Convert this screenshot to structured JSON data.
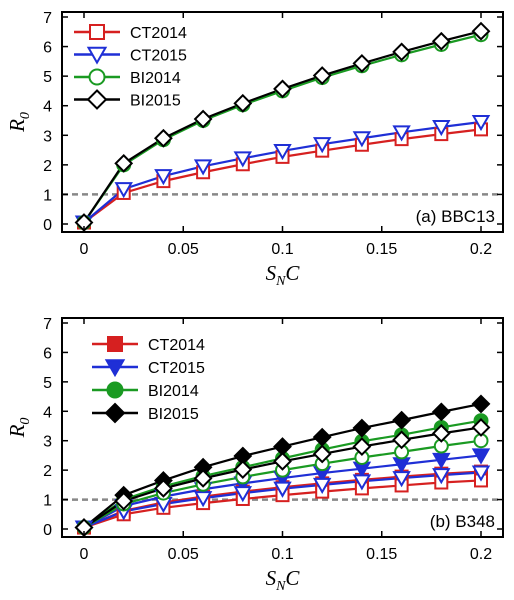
{
  "colors": {
    "CT2014": "#d62020",
    "CT2015": "#1f2fd6",
    "BI2014": "#1a9a22",
    "BI2015": "#000000",
    "threshold": "#888888"
  },
  "chart_data": [
    {
      "type": "line",
      "panel_label": "(a) BBC13",
      "xlabel": "S_N C",
      "ylabel": "R_0",
      "xlim": [
        0,
        0.2
      ],
      "ylim": [
        0,
        7
      ],
      "x_ticks": [
        "0",
        "0.05",
        "0.1",
        "0.15",
        "0.2"
      ],
      "y_ticks": [
        "0",
        "1",
        "2",
        "3",
        "4",
        "5",
        "6",
        "7"
      ],
      "x_tick_values": [
        0,
        0.05,
        0.1,
        0.15,
        0.2
      ],
      "y_tick_values": [
        0,
        1,
        2,
        3,
        4,
        5,
        6,
        7
      ],
      "threshold": 1,
      "legend_position": "top-left",
      "x": [
        0,
        0.02,
        0.04,
        0.06,
        0.08,
        0.1,
        0.12,
        0.14,
        0.16,
        0.18,
        0.2
      ],
      "series": [
        {
          "name": "CT2014",
          "marker": "square",
          "filled": false,
          "color_key": "CT2014",
          "values": [
            0.05,
            1.05,
            1.45,
            1.75,
            2.02,
            2.27,
            2.48,
            2.68,
            2.87,
            3.04,
            3.2
          ]
        },
        {
          "name": "CT2015",
          "marker": "triangle-down",
          "filled": false,
          "color_key": "CT2015",
          "values": [
            0.05,
            1.18,
            1.62,
            1.95,
            2.22,
            2.47,
            2.7,
            2.9,
            3.1,
            3.28,
            3.45
          ]
        },
        {
          "name": "BI2014",
          "marker": "circle",
          "filled": false,
          "color_key": "BI2014",
          "values": [
            0.05,
            2.0,
            2.85,
            3.5,
            4.03,
            4.5,
            4.95,
            5.35,
            5.72,
            6.07,
            6.4
          ]
        },
        {
          "name": "BI2015",
          "marker": "diamond",
          "filled": false,
          "color_key": "BI2015",
          "values": [
            0.05,
            2.05,
            2.9,
            3.55,
            4.08,
            4.57,
            5.02,
            5.43,
            5.82,
            6.18,
            6.52
          ]
        }
      ]
    },
    {
      "type": "line",
      "panel_label": "(b) B348",
      "xlabel": "S_N C",
      "ylabel": "R_0",
      "xlim": [
        0,
        0.2
      ],
      "ylim": [
        0,
        7
      ],
      "x_ticks": [
        "0",
        "0.05",
        "0.1",
        "0.15",
        "0.2"
      ],
      "y_ticks": [
        "0",
        "1",
        "2",
        "3",
        "4",
        "5",
        "6",
        "7"
      ],
      "x_tick_values": [
        0,
        0.05,
        0.1,
        0.15,
        0.2
      ],
      "y_tick_values": [
        0,
        1,
        2,
        3,
        4,
        5,
        6,
        7
      ],
      "threshold": 1,
      "legend_position": "top-left",
      "x": [
        0,
        0.02,
        0.04,
        0.06,
        0.08,
        0.1,
        0.12,
        0.14,
        0.16,
        0.18,
        0.2
      ],
      "series": [
        {
          "name": "CT2014",
          "marker": "square",
          "filled": true,
          "color_key": "CT2014",
          "values": [
            0.05,
            0.62,
            0.9,
            1.1,
            1.27,
            1.42,
            1.55,
            1.67,
            1.78,
            1.88,
            1.95
          ]
        },
        {
          "name": "CT2015",
          "marker": "triangle-down",
          "filled": true,
          "color_key": "CT2015",
          "values": [
            0.05,
            0.78,
            1.1,
            1.35,
            1.55,
            1.73,
            1.9,
            2.05,
            2.2,
            2.35,
            2.5
          ]
        },
        {
          "name": "BI2014",
          "marker": "circle",
          "filled": true,
          "color_key": "BI2014",
          "values": [
            0.05,
            1.0,
            1.45,
            1.8,
            2.1,
            2.4,
            2.7,
            2.98,
            3.2,
            3.45,
            3.68
          ]
        },
        {
          "name": "BI2015",
          "marker": "diamond",
          "filled": true,
          "color_key": "BI2015",
          "values": [
            0.05,
            1.15,
            1.65,
            2.1,
            2.48,
            2.8,
            3.12,
            3.43,
            3.7,
            3.98,
            4.25
          ]
        },
        {
          "marker": "square",
          "filled": false,
          "color_key": "CT2014",
          "values": [
            0.05,
            0.5,
            0.72,
            0.88,
            1.02,
            1.15,
            1.27,
            1.38,
            1.48,
            1.58,
            1.65
          ]
        },
        {
          "marker": "triangle-down",
          "filled": false,
          "color_key": "CT2015",
          "values": [
            0.05,
            0.6,
            0.85,
            1.05,
            1.22,
            1.37,
            1.5,
            1.62,
            1.73,
            1.83,
            1.92
          ]
        },
        {
          "marker": "circle",
          "filled": false,
          "color_key": "BI2014",
          "values": [
            0.05,
            0.85,
            1.22,
            1.52,
            1.77,
            2.0,
            2.22,
            2.43,
            2.62,
            2.82,
            3.0
          ]
        },
        {
          "marker": "diamond",
          "filled": false,
          "color_key": "BI2015",
          "values": [
            0.05,
            0.95,
            1.38,
            1.72,
            2.02,
            2.3,
            2.55,
            2.8,
            3.03,
            3.25,
            3.45
          ]
        }
      ]
    }
  ]
}
